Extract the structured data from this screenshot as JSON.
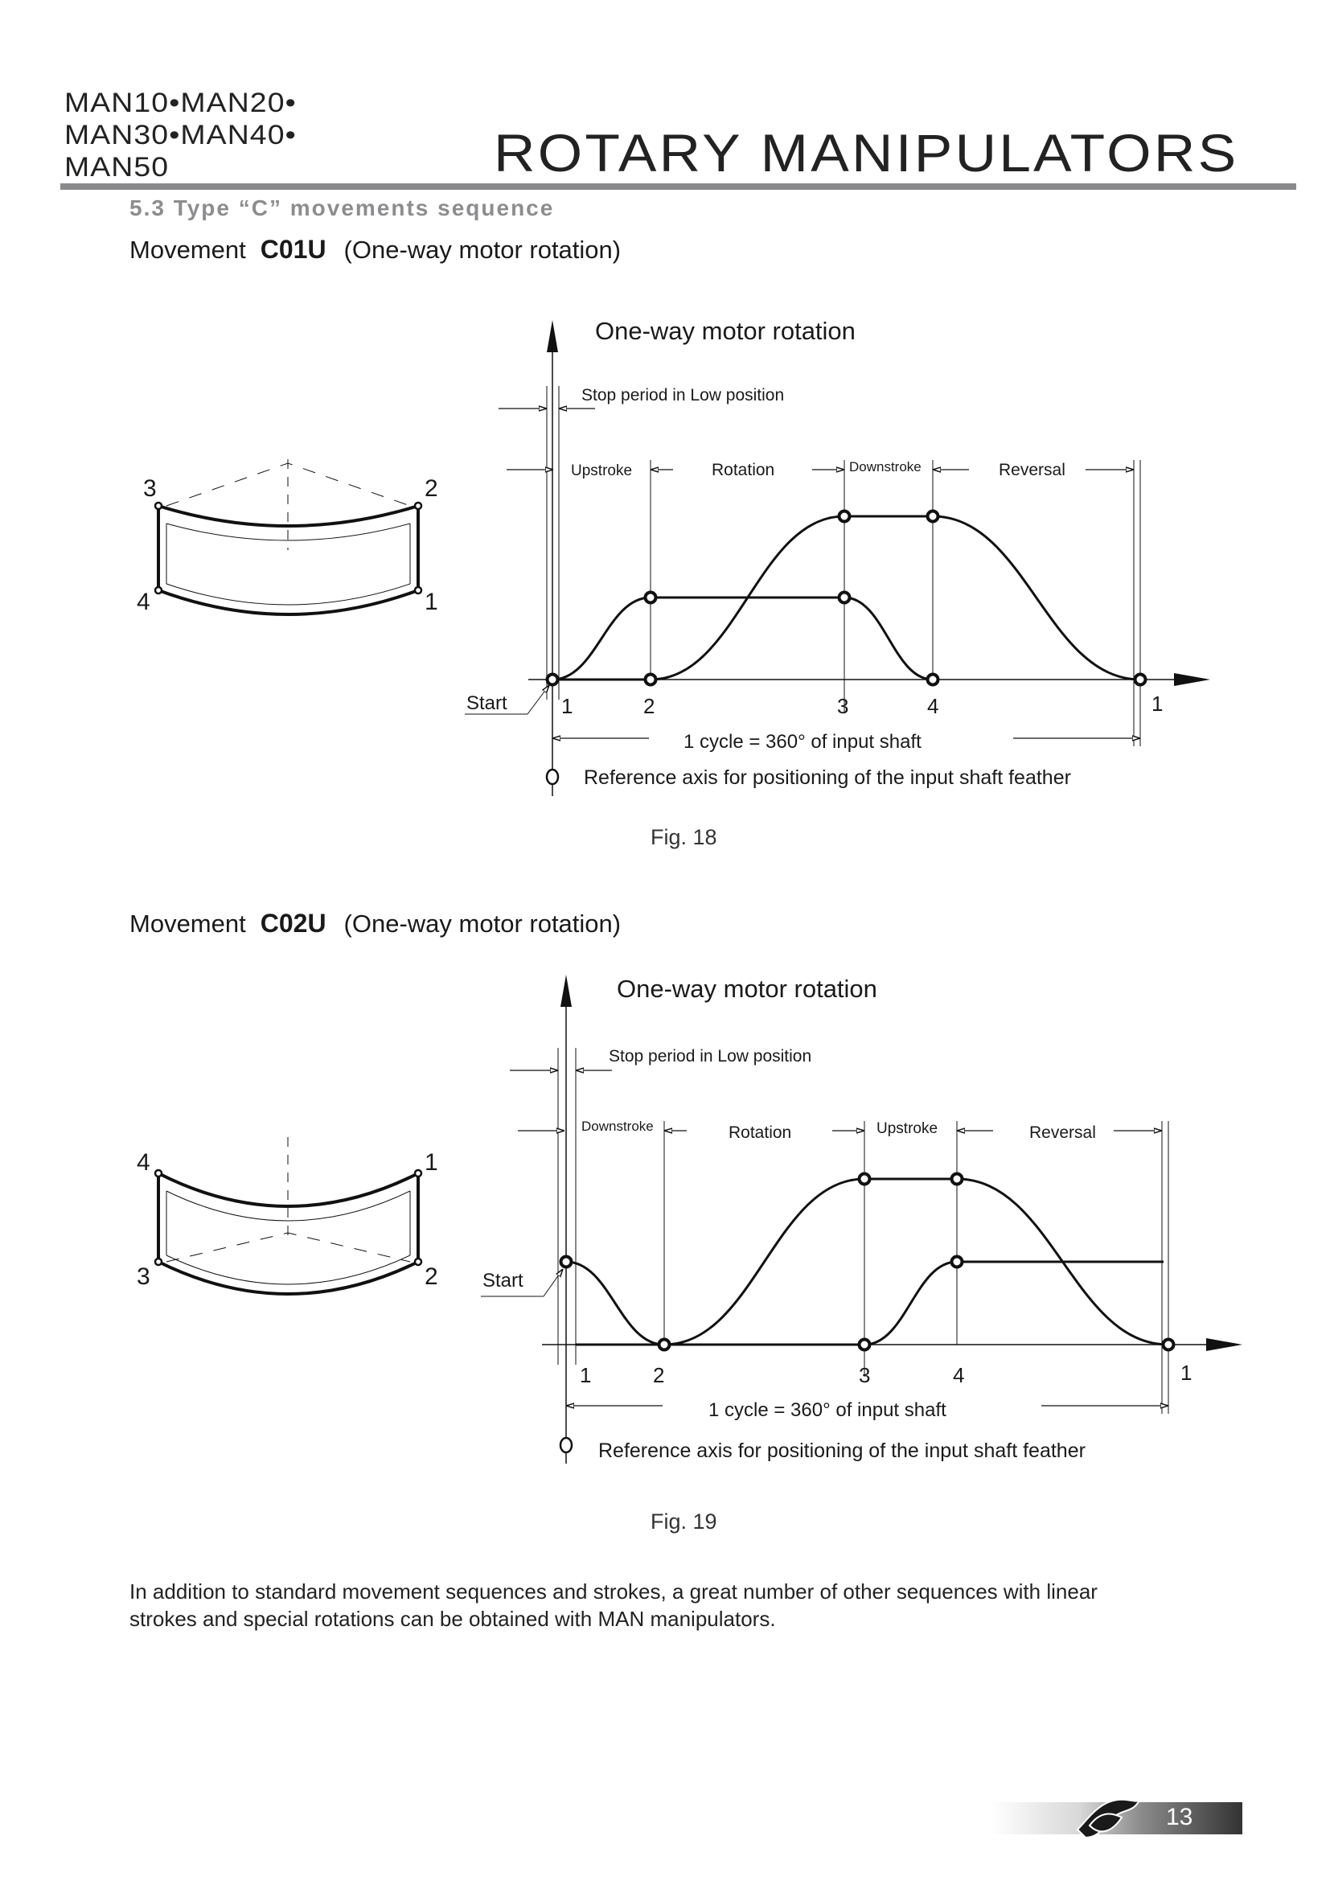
{
  "header": {
    "series_lines": [
      "MAN10•MAN20•",
      "MAN30•MAN40•",
      "MAN50"
    ],
    "title": "ROTARY MANIPULATORS"
  },
  "section_title": "5.3  Type “C” movements sequence",
  "figures": [
    {
      "movement_prefix": "Movement",
      "movement_code": "C01U",
      "movement_note": "(One-way motor rotation)",
      "chart_title": "One-way motor rotation",
      "stop_label": "Stop period in Low position",
      "phases": [
        "Upstroke",
        "Rotation",
        "Downstroke",
        "Reversal"
      ],
      "positions": [
        "1",
        "2",
        "3",
        "4",
        "1"
      ],
      "start_label": "Start",
      "cycle_label": "1 cycle = 360° of input shaft",
      "reference_label": "Reference axis for positioning of the input shaft feather",
      "icon_corners": [
        "3",
        "2",
        "4",
        "1"
      ],
      "caption": "Fig. 18"
    },
    {
      "movement_prefix": "Movement",
      "movement_code": "C02U",
      "movement_note": "(One-way motor rotation)",
      "chart_title": "One-way motor rotation",
      "stop_label": "Stop period in Low position",
      "phases": [
        "Downstroke",
        "Rotation",
        "Upstroke",
        "Reversal"
      ],
      "positions": [
        "1",
        "2",
        "3",
        "4",
        "1"
      ],
      "start_label": "Start",
      "cycle_label": "1 cycle = 360° of input shaft",
      "reference_label": "Reference axis for positioning of the input shaft feather",
      "icon_corners": [
        "4",
        "1",
        "3",
        "2"
      ],
      "caption": "Fig. 19"
    }
  ],
  "paragraph": [
    "In addition to standard movement sequences and strokes, a great number of other sequences with linear",
    "strokes and special rotations can be obtained with MAN manipulators."
  ],
  "footer": {
    "page_number": "13",
    "logo": "brand-logo"
  },
  "colors": {
    "rule": "#8a8a8c",
    "section": "#8d8d8f"
  }
}
